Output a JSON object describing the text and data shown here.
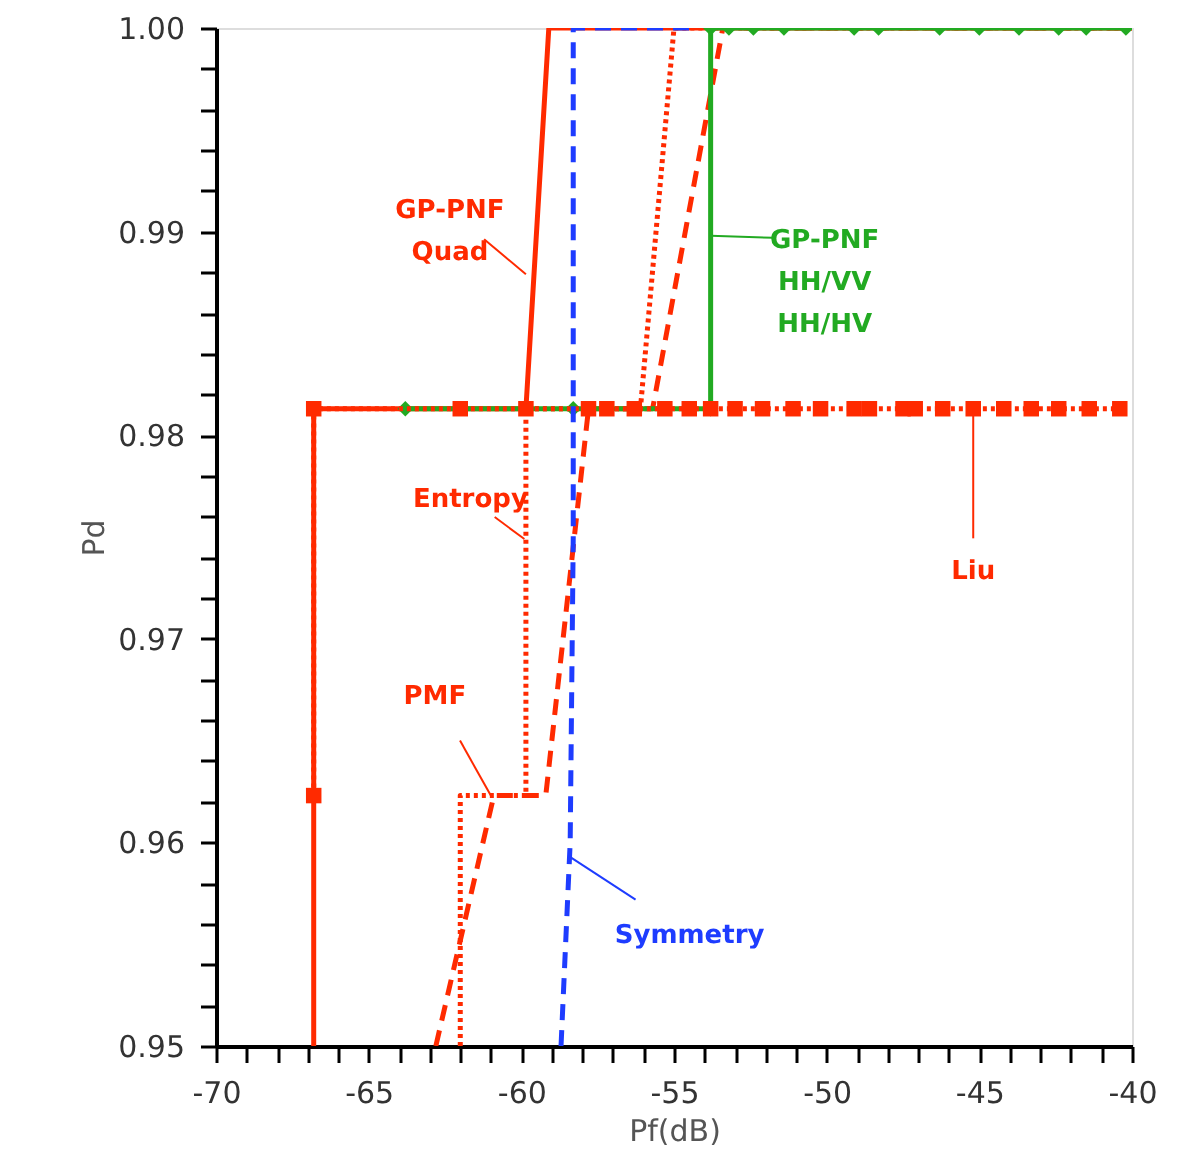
{
  "chart_data": {
    "type": "line",
    "xlabel": "Pf(dB)",
    "ylabel": "Pd",
    "xlim": [
      -70,
      -40
    ],
    "ylim": [
      0.95,
      1.0
    ],
    "xticks": [
      -70,
      -65,
      -60,
      -55,
      -50,
      -45,
      -40,
      {
        "value": -69,
        "label": null
      },
      {
        "value": -68,
        "label": null
      },
      {
        "value": -67,
        "label": null
      },
      {
        "value": -66,
        "label": null
      },
      {
        "value": -64,
        "label": null
      },
      {
        "value": -63,
        "label": null
      },
      {
        "value": -62,
        "label": null
      },
      {
        "value": -61,
        "label": null
      },
      {
        "value": -59,
        "label": null
      },
      {
        "value": -58,
        "label": null
      },
      {
        "value": -57,
        "label": null
      },
      {
        "value": -56,
        "label": null
      },
      {
        "value": -54,
        "label": null
      },
      {
        "value": -53,
        "label": null
      },
      {
        "value": -52,
        "label": null
      },
      {
        "value": -51,
        "label": null
      },
      {
        "value": -49,
        "label": null
      },
      {
        "value": -48,
        "label": null
      },
      {
        "value": -47,
        "label": null
      },
      {
        "value": -46,
        "label": null
      },
      {
        "value": -44,
        "label": null
      },
      {
        "value": -43,
        "label": null
      },
      {
        "value": -42,
        "label": null
      },
      {
        "value": -41,
        "label": null
      }
    ],
    "yticks": [
      0.95,
      0.96,
      0.97,
      0.98,
      0.99,
      {
        "value": 1.0,
        "label": "1.00"
      },
      {
        "value": 0.952,
        "label": null
      },
      {
        "value": 0.954,
        "label": null
      },
      {
        "value": 0.956,
        "label": null
      },
      {
        "value": 0.958,
        "label": null
      },
      {
        "value": 0.962,
        "label": null
      },
      {
        "value": 0.964,
        "label": null
      },
      {
        "value": 0.966,
        "label": null
      },
      {
        "value": 0.968,
        "label": null
      },
      {
        "value": 0.972,
        "label": null
      },
      {
        "value": 0.974,
        "label": null
      },
      {
        "value": 0.976,
        "label": null
      },
      {
        "value": 0.978,
        "label": null
      },
      {
        "value": 0.982,
        "label": null
      },
      {
        "value": 0.984,
        "label": null
      },
      {
        "value": 0.986,
        "label": null
      },
      {
        "value": 0.988,
        "label": null
      },
      {
        "value": 0.992,
        "label": null
      },
      {
        "value": 0.994,
        "label": null
      },
      {
        "value": 0.996,
        "label": null
      },
      {
        "value": 0.998,
        "label": null
      }
    ],
    "grid": false,
    "series": [
      {
        "color": "#ff2a00",
        "line_style": "solid",
        "marker": "none",
        "x": [
          -66.8,
          -66.8,
          -59.85,
          -59.1,
          -40
        ],
        "values": [
          0.95,
          0.9813,
          0.9813,
          1.0,
          1.0
        ]
      },
      {
        "color": "#ff2a00",
        "line_style": "dotted",
        "marker": "none",
        "x": [
          -62.0,
          -62.0,
          -59.85,
          -59.85,
          -56.1,
          -55.0,
          -40
        ],
        "values": [
          0.95,
          0.9623,
          0.9623,
          0.9813,
          0.9813,
          1.0,
          1.0
        ]
      },
      {
        "color": "#ff2a00",
        "line_style": "dashed",
        "marker": "none",
        "x": [
          -62.8,
          -60.9,
          -59.2,
          -57.8,
          -55.7,
          -53.4,
          -40
        ],
        "values": [
          0.95,
          0.9623,
          0.9623,
          0.9813,
          0.9813,
          1.0,
          1.0
        ]
      },
      {
        "color": "#22aa22",
        "line_style": "solid",
        "marker": "diamond",
        "x": [
          -63.8,
          -58.3,
          -53.8,
          -53.8,
          -53.2,
          -52.4,
          -51.4,
          -49.1,
          -48.3,
          -46.3,
          -45.0,
          -43.7,
          -42.4,
          -41.5,
          -40.2
        ],
        "values": [
          0.9813,
          0.9813,
          0.9813,
          1.0,
          1.0,
          1.0,
          1.0,
          1.0,
          1.0,
          1.0,
          1.0,
          1.0,
          1.0,
          1.0,
          1.0
        ]
      },
      {
        "color": "#ff2a00",
        "line_style": "dotted",
        "marker": "square",
        "x": [
          -66.8,
          -66.8,
          -62.0,
          -59.85,
          -57.8,
          -57.2,
          -56.3,
          -55.3,
          -54.5,
          -53.8,
          -53.0,
          -52.1,
          -51.1,
          -50.2,
          -49.1,
          -48.6,
          -47.5,
          -47.1,
          -46.2,
          -45.2,
          -44.2,
          -43.3,
          -42.4,
          -41.4,
          -40.4
        ],
        "values": [
          0.9623,
          0.9813,
          0.9813,
          0.9813,
          0.9813,
          0.9813,
          0.9813,
          0.9813,
          0.9813,
          0.9813,
          0.9813,
          0.9813,
          0.9813,
          0.9813,
          0.9813,
          0.9813,
          0.9813,
          0.9813,
          0.9813,
          0.9813,
          0.9813,
          0.9813,
          0.9813,
          0.9813,
          0.9813
        ]
      },
      {
        "color": "#1e3cff",
        "line_style": "dashed",
        "marker": "none",
        "x": [
          -58.7,
          -58.4,
          -58.3,
          -58.3,
          -54.2
        ],
        "values": [
          0.95,
          0.96,
          0.975,
          1.0,
          1.0
        ]
      }
    ],
    "annotations": [
      {
        "text": "GP-PNF\nQuad",
        "x": -59.85,
        "y": 0.9879
      },
      {
        "text": "Entropy",
        "x": -59.9,
        "y": 0.9749
      },
      {
        "text": "PMF",
        "x": -61.0,
        "y": 0.9623
      },
      {
        "text": "GP-PNF\nHH/VV\nHH/HV",
        "x": -53.8,
        "y": 0.9898
      },
      {
        "text": "Liu",
        "x": -45.2,
        "y": 0.9813
      },
      {
        "text": "Symmetry",
        "x": -58.42,
        "y": 0.9593
      }
    ]
  }
}
